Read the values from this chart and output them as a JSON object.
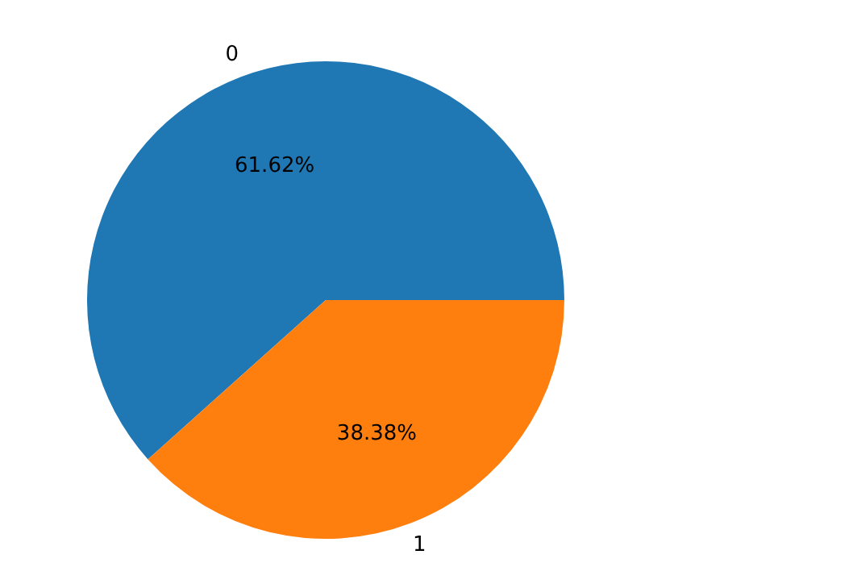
{
  "chart_data": {
    "type": "pie",
    "categories": [
      "0",
      "1"
    ],
    "values": [
      61.62,
      38.38
    ],
    "colors": [
      "#1f77b4",
      "#ff7f0e"
    ],
    "value_labels": [
      "61.62%",
      "38.38%"
    ],
    "legend": false
  }
}
